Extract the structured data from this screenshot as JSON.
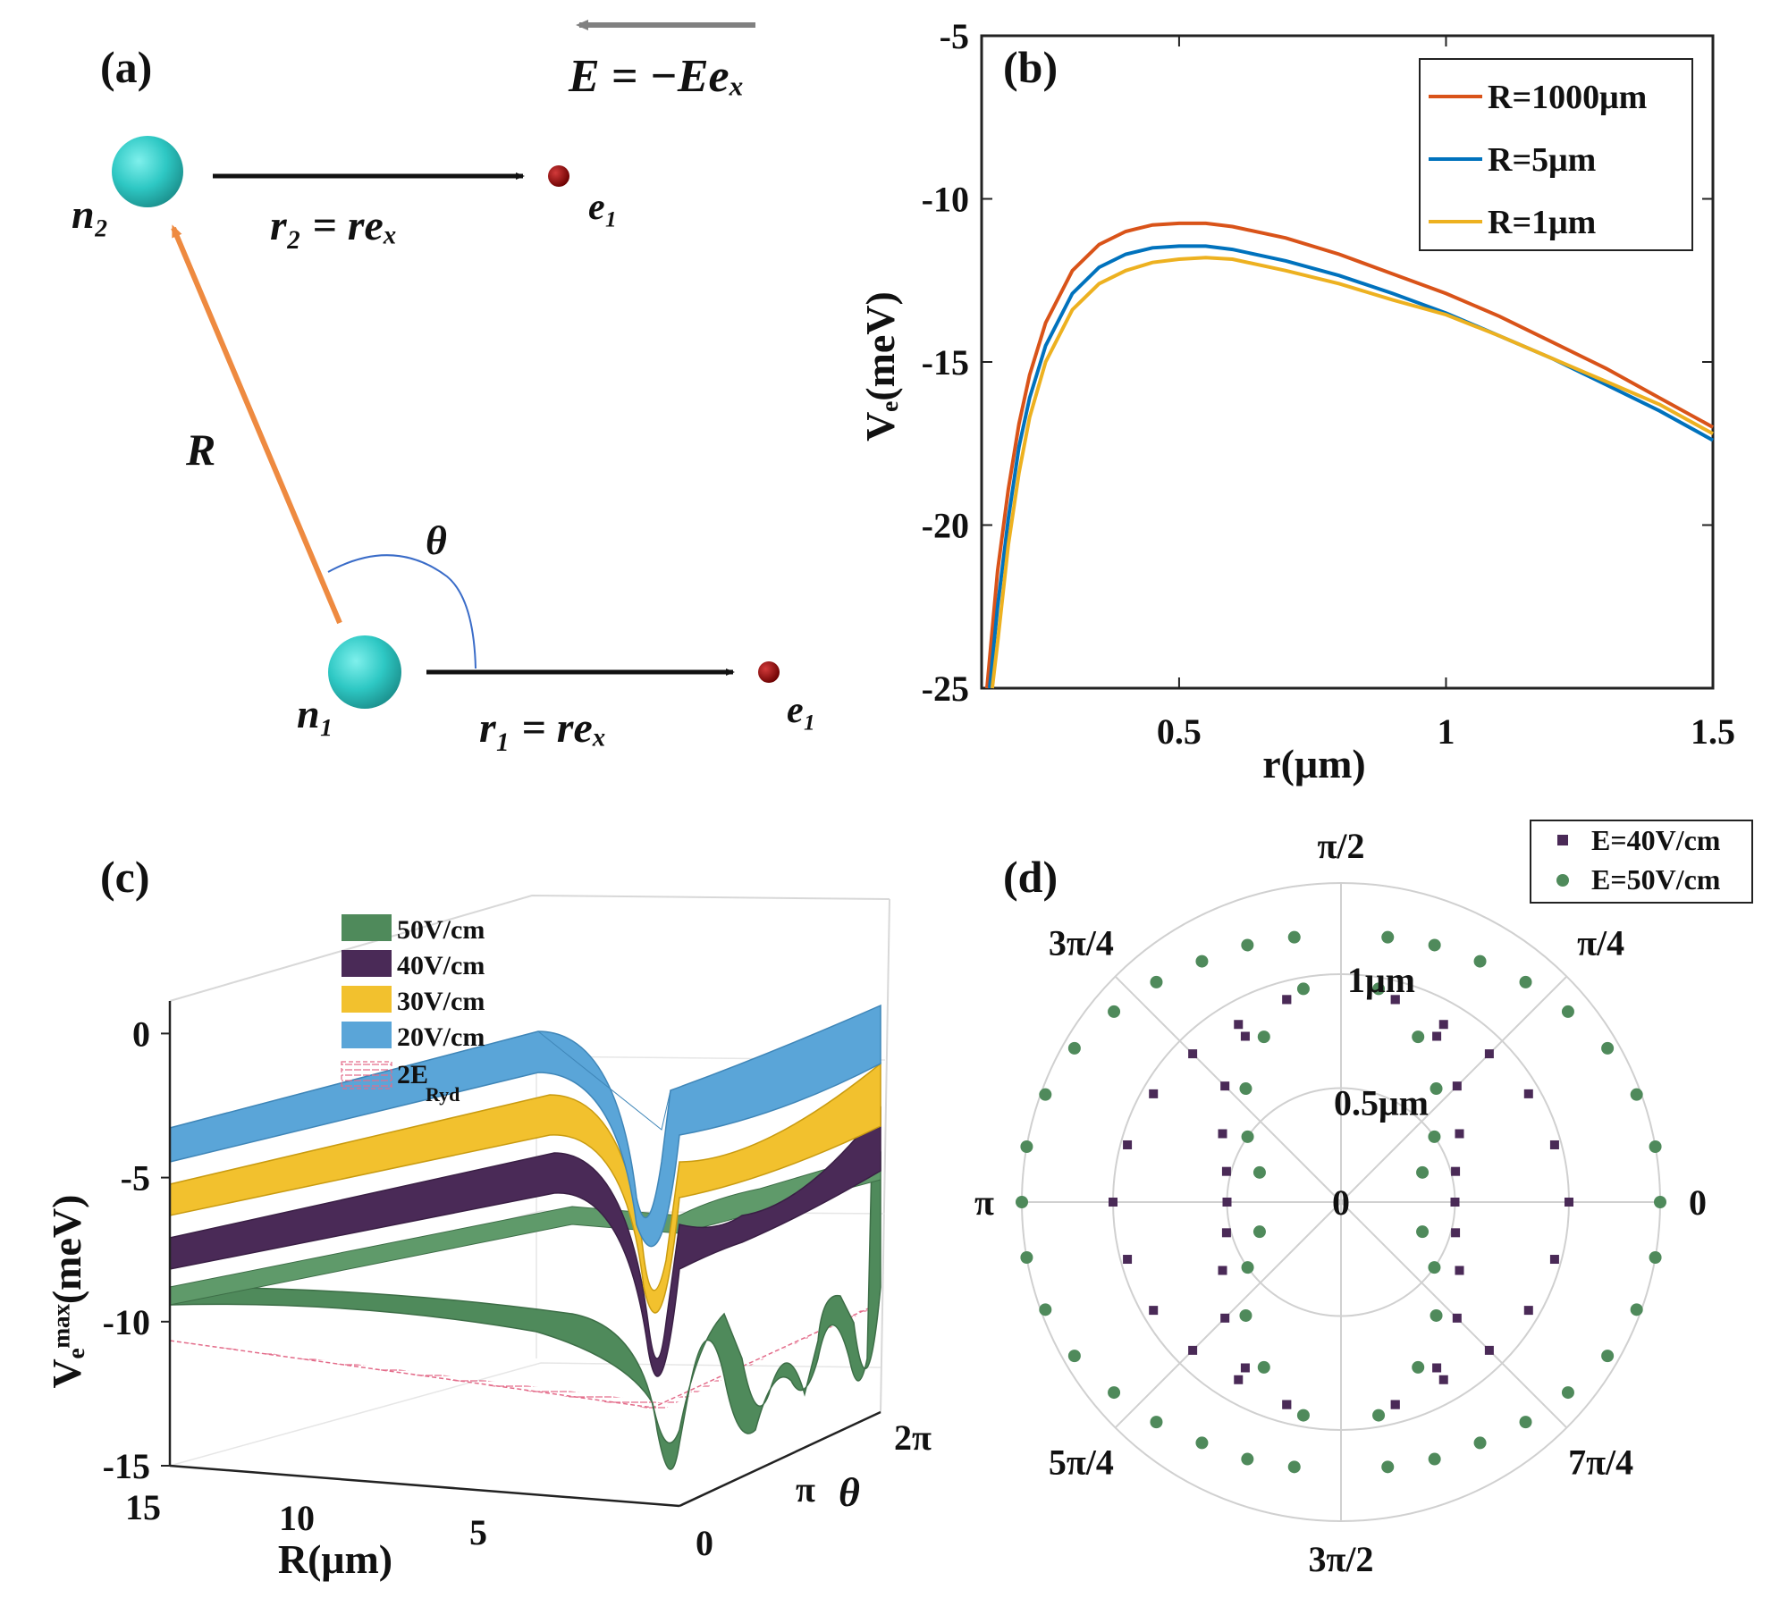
{
  "panel_a": {
    "label": "(a)",
    "field": "E = −Eeₓ",
    "n1": "n₁",
    "n2": "n₂",
    "e1_top": "e₁",
    "e1_bottom": "e₁",
    "r2": "r₂ = reₓ",
    "r1": "r₁ = reₓ",
    "R": "R",
    "theta": "θ",
    "colors": {
      "atom": "#2ec8c4",
      "electron": "#8b0000",
      "R_arrow": "#ee8a40",
      "arc": "#3a6cc8",
      "field_arrow": "#808080"
    }
  },
  "panel_b": {
    "label": "(b)",
    "xlabel": "r(μm)",
    "ylabel": "Vₑ(meV)",
    "xticks": [
      "0.5",
      "1",
      "1.5"
    ],
    "yticks": [
      "-5",
      "-10",
      "-15",
      "-20",
      "-25"
    ],
    "legend": [
      "R=1000μm",
      "R=5μm",
      "R=1μm"
    ]
  },
  "panel_c": {
    "label": "(c)",
    "xlabel": "R(μm)",
    "ylabel": "Vₑᵐᵃˣ(meV)",
    "theta_label": "θ",
    "yticks": [
      "0",
      "-5",
      "-10",
      "-15"
    ],
    "rticks": [
      "15",
      "10",
      "5"
    ],
    "thetaticks": [
      "0",
      "π",
      "2π"
    ],
    "legend": [
      "50V/cm",
      "40V/cm",
      "30V/cm",
      "20V/cm",
      "2E"
    ],
    "legend_sub": "Ryd",
    "colors": {
      "50V/cm": "#4f8a5b",
      "40V/cm": "#4a2a57",
      "30V/cm": "#f2c12e",
      "20V/cm": "#5aa5d8",
      "2ERyd": "#e36c8a"
    }
  },
  "panel_d": {
    "label": "(d)",
    "angle_labels": [
      "0",
      "π/4",
      "π/2",
      "3π/4",
      "π",
      "5π/4",
      "3π/2",
      "7π/4"
    ],
    "radial_labels": [
      "0",
      "0.5μm",
      "1μm"
    ],
    "legend": [
      "E=40V/cm",
      "E=50V/cm"
    ],
    "colors": {
      "E=40V/cm": "#4a2a57",
      "E=50V/cm": "#4f8a5b"
    }
  },
  "chart_data": [
    {
      "type": "line",
      "panel": "(b)",
      "xlabel": "r(μm)",
      "ylabel": "Vₑ(meV)",
      "xlim": [
        0.13,
        1.5
      ],
      "ylim": [
        -25,
        -5
      ],
      "series": [
        {
          "name": "R=1000μm",
          "color": "#d95319",
          "x": [
            0.14,
            0.16,
            0.18,
            0.2,
            0.22,
            0.25,
            0.3,
            0.35,
            0.4,
            0.45,
            0.5,
            0.55,
            0.6,
            0.7,
            0.8,
            0.9,
            1.0,
            1.1,
            1.2,
            1.3,
            1.4,
            1.5
          ],
          "y": [
            -25.0,
            -21.4,
            -18.9,
            -16.9,
            -15.4,
            -13.8,
            -12.2,
            -11.4,
            -11.0,
            -10.8,
            -10.75,
            -10.75,
            -10.85,
            -11.2,
            -11.7,
            -12.3,
            -12.9,
            -13.6,
            -14.4,
            -15.2,
            -16.1,
            -17.0
          ]
        },
        {
          "name": "R=5μm",
          "color": "#0072bd",
          "x": [
            0.145,
            0.16,
            0.18,
            0.2,
            0.22,
            0.25,
            0.3,
            0.35,
            0.4,
            0.45,
            0.5,
            0.55,
            0.6,
            0.7,
            0.8,
            0.9,
            1.0,
            1.1,
            1.2,
            1.3,
            1.4,
            1.5
          ],
          "y": [
            -25.0,
            -22.5,
            -19.8,
            -17.6,
            -16.1,
            -14.5,
            -12.9,
            -12.1,
            -11.7,
            -11.5,
            -11.45,
            -11.45,
            -11.55,
            -11.9,
            -12.35,
            -12.9,
            -13.5,
            -14.2,
            -14.9,
            -15.7,
            -16.5,
            -17.4
          ]
        },
        {
          "name": "R=1μm",
          "color": "#edb120",
          "x": [
            0.15,
            0.16,
            0.18,
            0.2,
            0.22,
            0.25,
            0.3,
            0.35,
            0.4,
            0.45,
            0.5,
            0.55,
            0.6,
            0.7,
            0.8,
            0.9,
            1.0,
            1.1,
            1.2,
            1.3,
            1.4,
            1.5
          ],
          "y": [
            -25.0,
            -23.6,
            -20.6,
            -18.4,
            -16.7,
            -15.0,
            -13.4,
            -12.6,
            -12.2,
            -11.95,
            -11.85,
            -11.8,
            -11.85,
            -12.2,
            -12.6,
            -13.1,
            -13.55,
            -14.2,
            -14.9,
            -15.6,
            -16.3,
            -17.2
          ]
        }
      ]
    },
    {
      "type": "area",
      "panel": "(c)",
      "xlabel": "R(μm)",
      "ylabel": "Vₑᵐᵃˣ(meV)",
      "zlim": [
        -15,
        0
      ],
      "series": [
        {
          "name": "20V/cm",
          "far_value": -7.0,
          "min_value": -10.8,
          "near_value": -0.7
        },
        {
          "name": "30V/cm",
          "far_value": -8.4,
          "min_value": -12.8,
          "near_value": -2.3
        },
        {
          "name": "40V/cm",
          "far_value": -9.7,
          "min_value": -14.3,
          "near_value": -3.8
        },
        {
          "name": "50V/cm",
          "far_value": -10.8,
          "min_value": -15.0,
          "near_value": -5.2
        },
        {
          "name": "2ERyd",
          "far_value": -12.2,
          "min_value": -12.2,
          "near_value": -12.2
        }
      ]
    },
    {
      "type": "scatter",
      "panel": "(d)",
      "coords": "polar",
      "rlim": [
        0,
        1.4
      ],
      "series": [
        {
          "name": "E=40V/cm",
          "marker": "square",
          "theta_deg": [
            0,
            15,
            30,
            45,
            60,
            75,
            105,
            120,
            135,
            150,
            165,
            180,
            195,
            210,
            225,
            240,
            255,
            285,
            300,
            315,
            330,
            345,
            0,
            15,
            30,
            45,
            60,
            75,
            105,
            120,
            135,
            150,
            165,
            180,
            195,
            210,
            225,
            240,
            255,
            285,
            300,
            315,
            330,
            345
          ],
          "r": [
            1.0,
            0.97,
            0.95,
            0.92,
            0.9,
            0.92,
            0.92,
            0.9,
            0.92,
            0.95,
            0.97,
            1.0,
            0.97,
            0.95,
            0.92,
            0.9,
            0.92,
            0.92,
            0.9,
            0.92,
            0.95,
            0.97,
            0.5,
            0.52,
            0.6,
            0.72,
            0.84,
            0.92,
            0.92,
            0.84,
            0.72,
            0.6,
            0.52,
            0.5,
            0.52,
            0.6,
            0.72,
            0.84,
            0.92,
            0.92,
            0.84,
            0.72,
            0.6,
            0.52
          ]
        },
        {
          "name": "E=50V/cm",
          "marker": "circle",
          "theta_deg": [
            0,
            10,
            20,
            30,
            40,
            50,
            60,
            70,
            80,
            100,
            110,
            120,
            130,
            140,
            150,
            160,
            170,
            180,
            190,
            200,
            210,
            220,
            230,
            240,
            250,
            260,
            280,
            290,
            300,
            310,
            320,
            330,
            340,
            350,
            20,
            35,
            50,
            65,
            80,
            100,
            115,
            130,
            145,
            160,
            200,
            215,
            230,
            245,
            260,
            280,
            295,
            310,
            325,
            340
          ],
          "r": [
            1.4,
            1.4,
            1.38,
            1.35,
            1.3,
            1.26,
            1.22,
            1.2,
            1.18,
            1.18,
            1.2,
            1.22,
            1.26,
            1.3,
            1.35,
            1.38,
            1.4,
            1.4,
            1.4,
            1.38,
            1.35,
            1.3,
            1.26,
            1.22,
            1.2,
            1.18,
            1.18,
            1.2,
            1.22,
            1.26,
            1.3,
            1.35,
            1.38,
            1.4,
            0.38,
            0.5,
            0.65,
            0.8,
            0.95,
            0.95,
            0.8,
            0.65,
            0.5,
            0.38,
            0.38,
            0.5,
            0.65,
            0.8,
            0.95,
            0.95,
            0.8,
            0.65,
            0.5,
            0.38
          ]
        }
      ]
    }
  ]
}
